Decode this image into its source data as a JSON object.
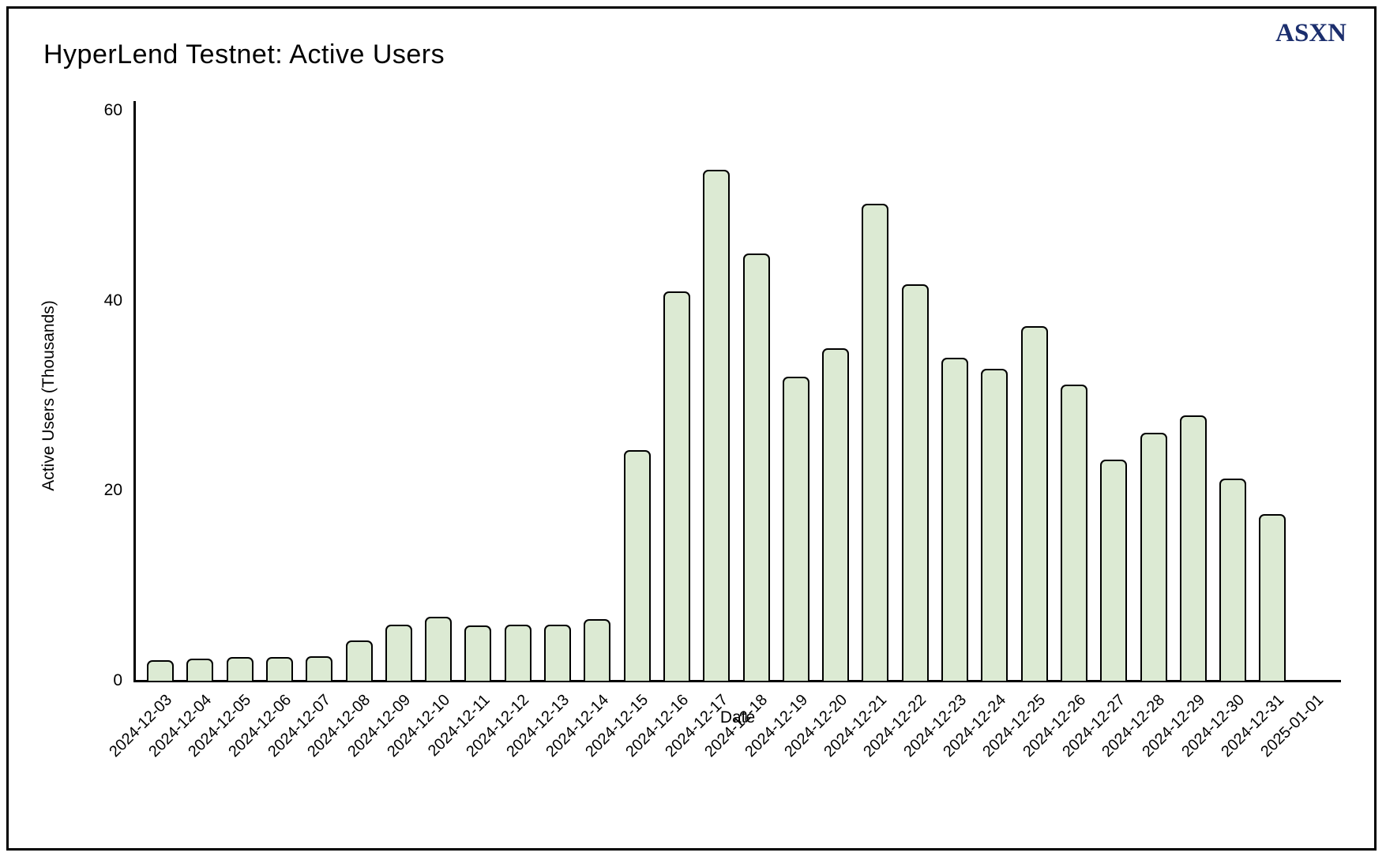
{
  "header": {
    "title": "HyperLend Testnet: Active Users",
    "logo_text": "ASXN"
  },
  "colors": {
    "bar_fill": "#dcead3",
    "bar_border": "#000000",
    "axis": "#000000",
    "logo": "#1b2e6d",
    "background": "#ffffff"
  },
  "chart_data": {
    "type": "bar",
    "title": "HyperLend Testnet: Active Users",
    "xlabel": "Date",
    "ylabel": "Active Users (Thousands)",
    "ylim": [
      0,
      60
    ],
    "yticks": [
      0,
      20,
      40,
      60
    ],
    "grid": false,
    "legend": "none",
    "categories": [
      "2024-12-03",
      "2024-12-04",
      "2024-12-05",
      "2024-12-06",
      "2024-12-07",
      "2024-12-08",
      "2024-12-09",
      "2024-12-10",
      "2024-12-11",
      "2024-12-12",
      "2024-12-13",
      "2024-12-14",
      "2024-12-15",
      "2024-12-16",
      "2024-12-17",
      "2024-12-18",
      "2024-12-19",
      "2024-12-20",
      "2024-12-21",
      "2024-12-22",
      "2024-12-23",
      "2024-12-24",
      "2024-12-25",
      "2024-12-26",
      "2024-12-27",
      "2024-12-28",
      "2024-12-29",
      "2024-12-30",
      "2024-12-31",
      "2025-01-01"
    ],
    "values": [
      2.2,
      2.3,
      2.5,
      2.5,
      2.6,
      4.2,
      5.9,
      6.7,
      5.8,
      5.9,
      5.9,
      6.5,
      24.3,
      41.0,
      53.8,
      45.0,
      32.0,
      35.0,
      50.2,
      41.7,
      34.0,
      32.8,
      37.3,
      31.2,
      23.3,
      26.1,
      27.9,
      21.3,
      17.5,
      null
    ]
  }
}
